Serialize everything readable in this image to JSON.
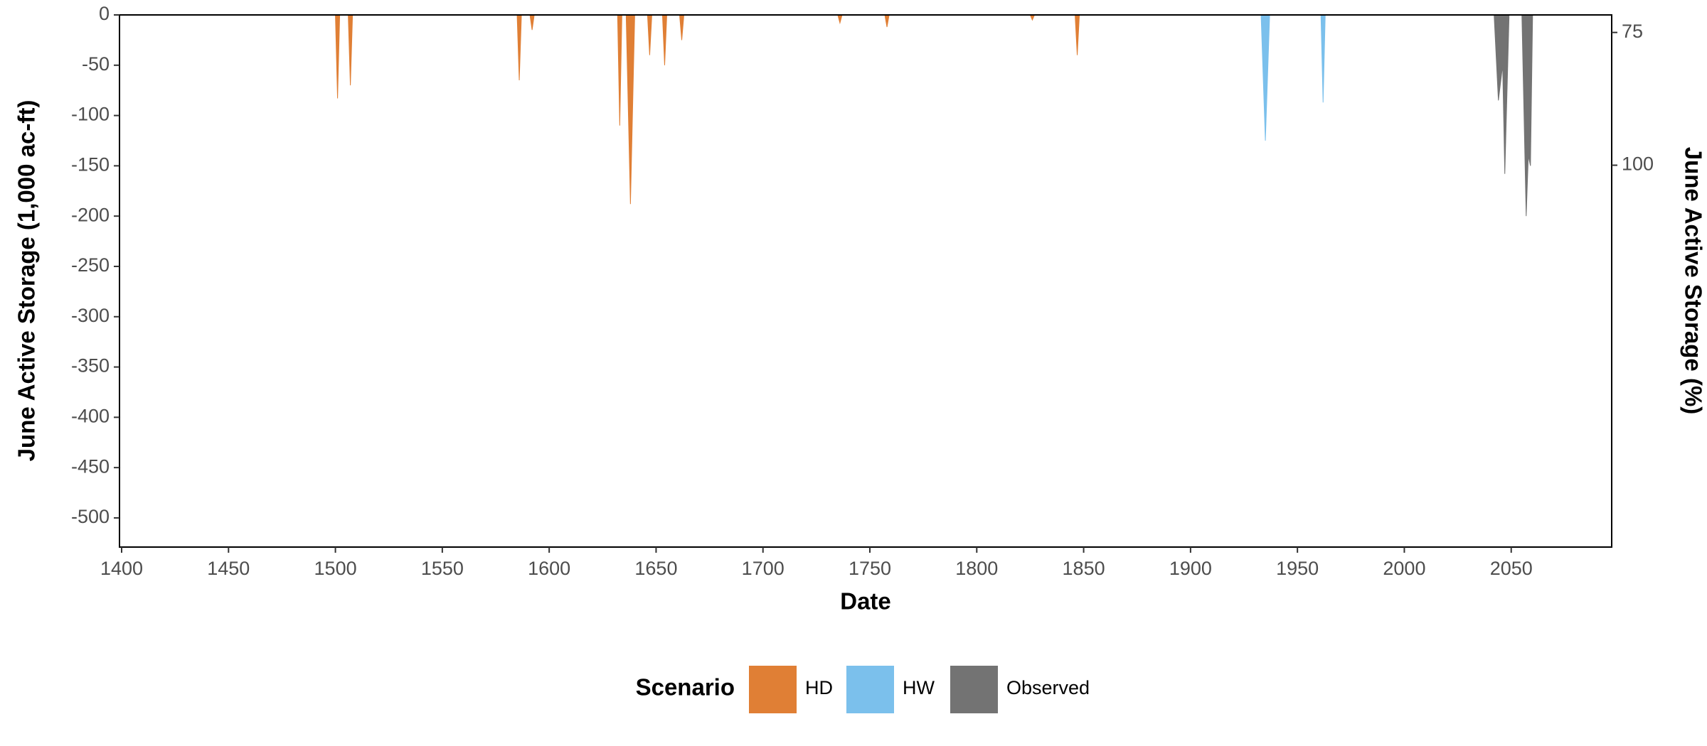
{
  "chart_data": {
    "type": "area",
    "x_label": "Date",
    "y_label": "June Active Storage (1,000 ac-ft)",
    "y2_label": "June Active Storage (%)",
    "legend_title": "Scenario",
    "xlim": [
      1399,
      2097
    ],
    "xticks": [
      1400,
      1450,
      1500,
      1550,
      1600,
      1650,
      1700,
      1750,
      1800,
      1850,
      1900,
      1950,
      2000,
      2050
    ],
    "ylim": [
      -529,
      0
    ],
    "yticks": [
      0,
      -50,
      -100,
      -150,
      -200,
      -250,
      -300,
      -350,
      -400,
      -450,
      -500
    ],
    "y2lim": [
      71.7,
      171.9
    ],
    "y2ticks": [
      75,
      100
    ],
    "grid": false,
    "series": [
      {
        "name": "HD",
        "color": "#e07f35",
        "x": [
          1500,
          1501,
          1502,
          1506,
          1507,
          1508,
          1585,
          1586,
          1587,
          1591,
          1592,
          1593,
          1632,
          1633,
          1634,
          1636,
          1638,
          1640,
          1646,
          1647,
          1648,
          1653,
          1654,
          1655,
          1661,
          1662,
          1663,
          1735,
          1736,
          1737,
          1757,
          1758,
          1759,
          1825,
          1826,
          1827,
          1846,
          1847,
          1848
        ],
        "values": [
          0,
          -83,
          0,
          0,
          -70,
          0,
          0,
          -65,
          0,
          0,
          -15,
          0,
          0,
          -110,
          0,
          0,
          -188,
          0,
          0,
          -40,
          0,
          0,
          -50,
          0,
          0,
          -25,
          0,
          0,
          -8,
          0,
          0,
          -12,
          0,
          0,
          -5,
          0,
          0,
          -40,
          0
        ]
      },
      {
        "name": "HW",
        "color": "#7bc0ec",
        "x": [
          1933,
          1935,
          1937,
          1961,
          1962,
          1963
        ],
        "values": [
          0,
          -125,
          0,
          0,
          -87,
          0
        ]
      },
      {
        "name": "Observed",
        "color": "#737373",
        "x": [
          2042,
          2044,
          2046,
          2047,
          2049,
          2055,
          2057,
          2058,
          2059,
          2060
        ],
        "values": [
          0,
          -85,
          -50,
          -158,
          0,
          0,
          -200,
          -140,
          -150,
          0
        ]
      }
    ]
  }
}
